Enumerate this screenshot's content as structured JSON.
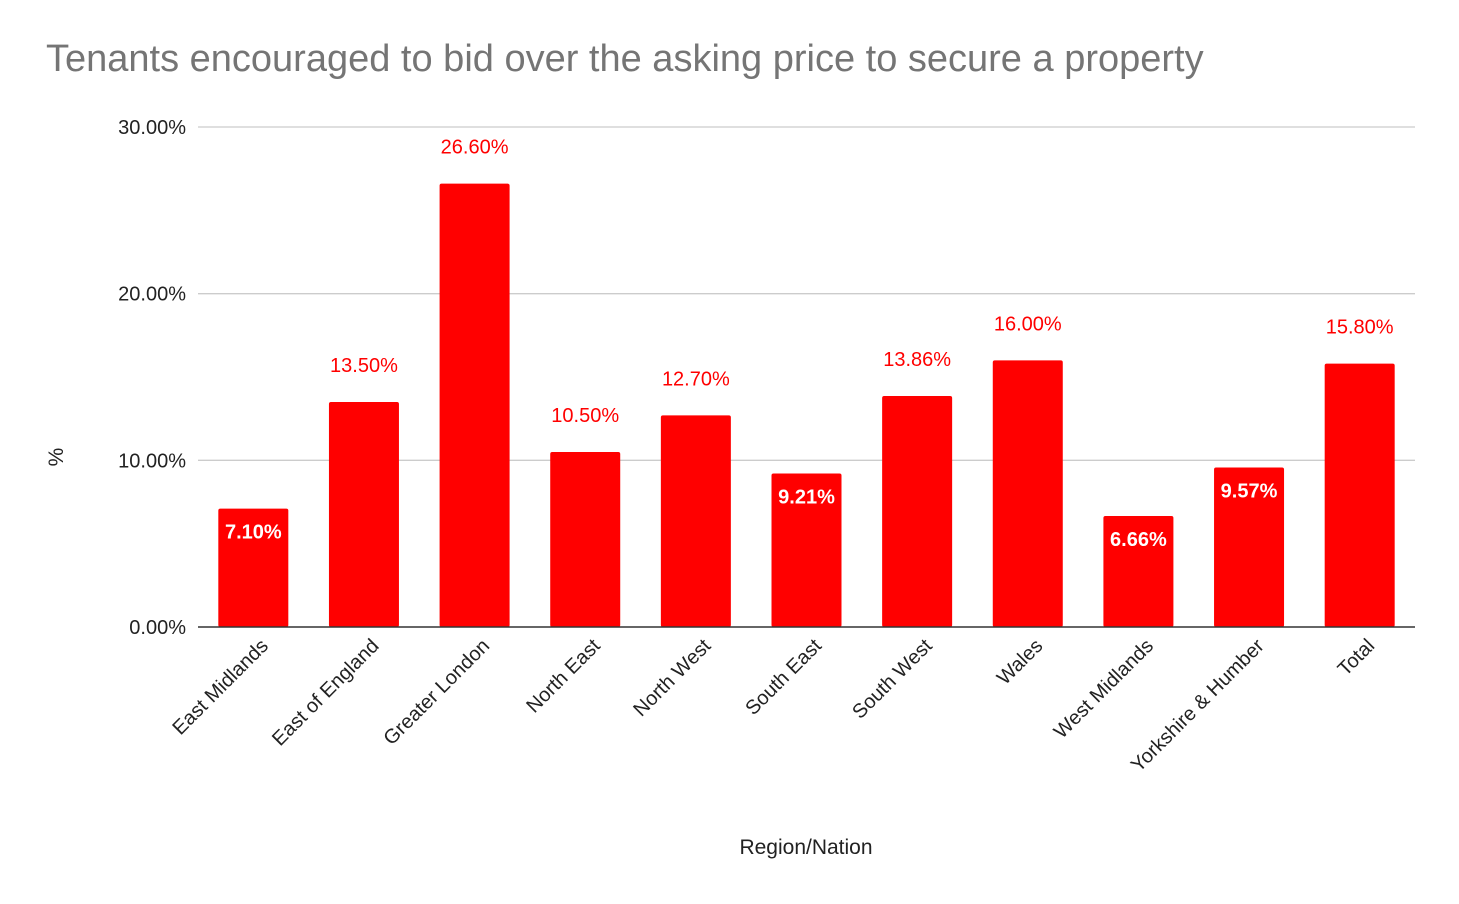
{
  "chart_data": {
    "type": "bar",
    "title": "Tenants encouraged to bid over the asking price to secure a property",
    "xlabel": "Region/Nation",
    "ylabel": "%",
    "categories": [
      "East Midlands",
      "East of England",
      "Greater London",
      "North East",
      "North West",
      "South East",
      "South West",
      "Wales",
      "West Midlands",
      "Yorkshire & Humber",
      "Total"
    ],
    "values": [
      7.1,
      13.5,
      26.6,
      10.5,
      12.7,
      9.21,
      13.86,
      16.0,
      6.66,
      9.57,
      15.8
    ],
    "data_labels": [
      "7.10%",
      "13.50%",
      "26.60%",
      "10.50%",
      "12.70%",
      "9.21%",
      "13.86%",
      "16.00%",
      "6.66%",
      "9.57%",
      "15.80%"
    ],
    "data_label_position": [
      "inside",
      "outside",
      "outside",
      "outside",
      "outside",
      "inside",
      "outside",
      "outside",
      "inside",
      "inside",
      "outside"
    ],
    "ylim": [
      0,
      30
    ],
    "yticks": [
      0,
      10,
      20,
      30
    ],
    "ytick_labels": [
      "0.00%",
      "10.00%",
      "20.00%",
      "30.00%"
    ],
    "grid": true,
    "legend": "none",
    "colors": {
      "bar": "#ff0000",
      "label_outside": "#ff0000",
      "label_inside": "#ffffff",
      "title": "#757575",
      "grid": "#cccccc",
      "axis": "#333333",
      "text": "#222222"
    }
  }
}
